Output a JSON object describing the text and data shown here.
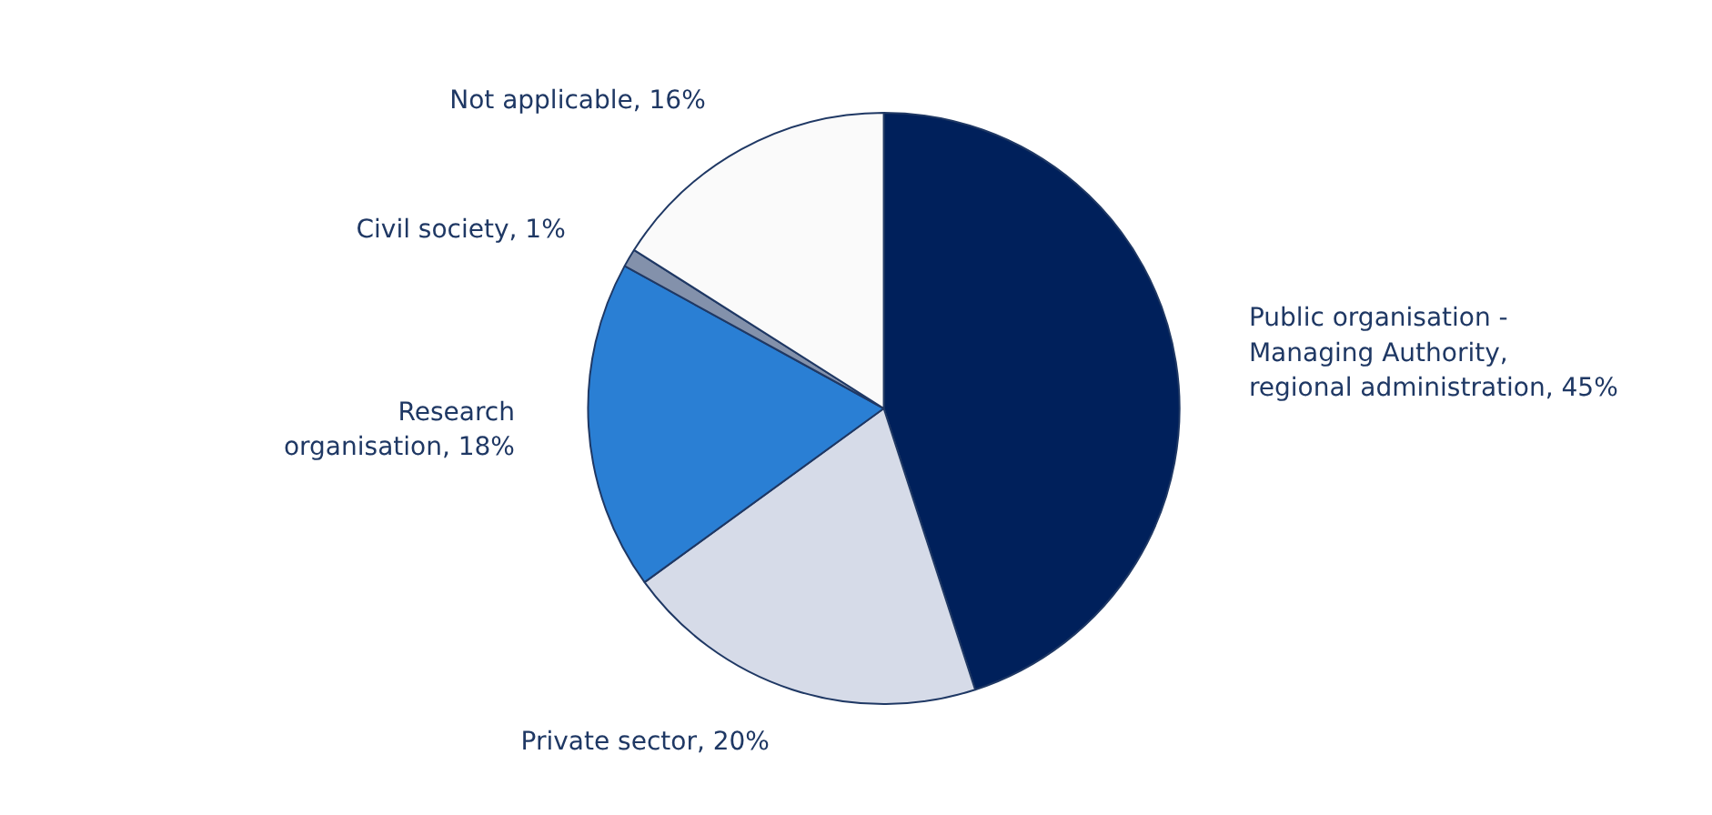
{
  "chart_data": {
    "type": "pie",
    "categories": [
      "Public organisation - Managing Authority, regional administration",
      "Private sector",
      "Research organisation",
      "Civil society",
      "Not applicable"
    ],
    "values": [
      45,
      20,
      18,
      1,
      16
    ],
    "value_labels": [
      "45%",
      "20%",
      "18%",
      "1%",
      "16%"
    ],
    "colors": [
      "#00205b",
      "#d6dbe8",
      "#2a7fd4",
      "#8391ab",
      "#fafafa"
    ]
  }
}
